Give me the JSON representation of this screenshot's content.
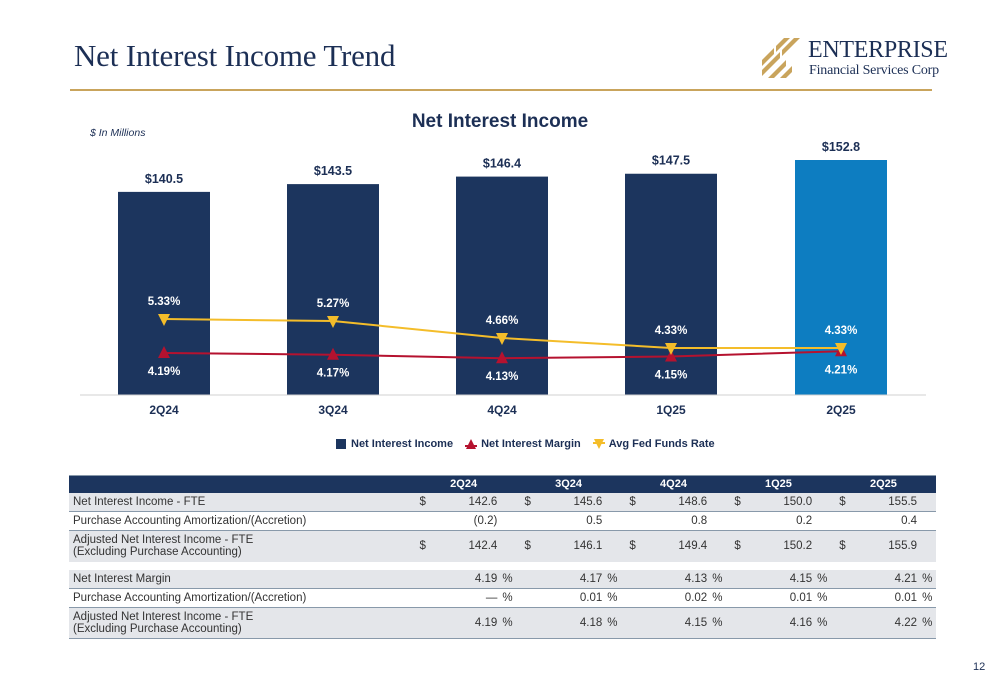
{
  "header": {
    "title": "Net Interest Income Trend",
    "logo_name": "ENTERPRISE",
    "logo_sub": "Financial Services Corp"
  },
  "chart_data": {
    "type": "bar",
    "title": "Net Interest Income",
    "units_note": "$ In Millions",
    "categories": [
      "2Q24",
      "3Q24",
      "4Q24",
      "1Q25",
      "2Q25"
    ],
    "series": [
      {
        "name": "Net Interest Income",
        "kind": "bar",
        "values": [
          140.5,
          143.5,
          146.4,
          147.5,
          152.8
        ],
        "labels": [
          "$140.5",
          "$143.5",
          "$146.4",
          "$147.5",
          "$152.8"
        ],
        "color": "#1c355e",
        "highlight_color": "#0d7dc1"
      },
      {
        "name": "Net Interest Margin",
        "kind": "line",
        "values": [
          4.19,
          4.17,
          4.13,
          4.15,
          4.21
        ],
        "labels": [
          "4.19%",
          "4.17%",
          "4.13%",
          "4.15%",
          "4.21%"
        ],
        "color": "#b5122f"
      },
      {
        "name": "Avg Fed Funds Rate",
        "kind": "line",
        "values": [
          5.33,
          5.27,
          4.66,
          4.33,
          4.33
        ],
        "labels": [
          "5.33%",
          "5.27%",
          "4.66%",
          "4.33%",
          "4.33%"
        ],
        "color": "#f4bd2a"
      }
    ],
    "legend_position": "bottom",
    "grid": false
  },
  "table": {
    "columns": [
      "",
      "2Q24",
      "3Q24",
      "4Q24",
      "1Q25",
      "2Q25"
    ],
    "currency_symbol": "$",
    "pct_symbol": "%",
    "rows": [
      {
        "label": "Net Interest Income - FTE",
        "values": [
          "142.6",
          "145.6",
          "148.6",
          "150.0",
          "155.5"
        ],
        "currency": true
      },
      {
        "label": "Purchase Accounting Amortization/(Accretion)",
        "values": [
          "(0.2)",
          "0.5",
          "0.8",
          "0.2",
          "0.4"
        ]
      },
      {
        "label": "Adjusted Net Interest Income - FTE",
        "label2": "(Excluding Purchase Accounting)",
        "values": [
          "142.4",
          "146.1",
          "149.4",
          "150.2",
          "155.9"
        ],
        "currency": true
      },
      {
        "label": "Net Interest Margin",
        "values": [
          "4.19",
          "4.17",
          "4.13",
          "4.15",
          "4.21"
        ],
        "pct": true
      },
      {
        "label": "Purchase Accounting Amortization/(Accretion)",
        "values": [
          "—",
          "0.01",
          "0.02",
          "0.01",
          "0.01"
        ],
        "pct": true
      },
      {
        "label": "Adjusted Net Interest Income - FTE",
        "label2": "(Excluding Purchase Accounting)",
        "values": [
          "4.19",
          "4.18",
          "4.15",
          "4.16",
          "4.22"
        ],
        "pct": true
      }
    ]
  },
  "page_number": "12"
}
